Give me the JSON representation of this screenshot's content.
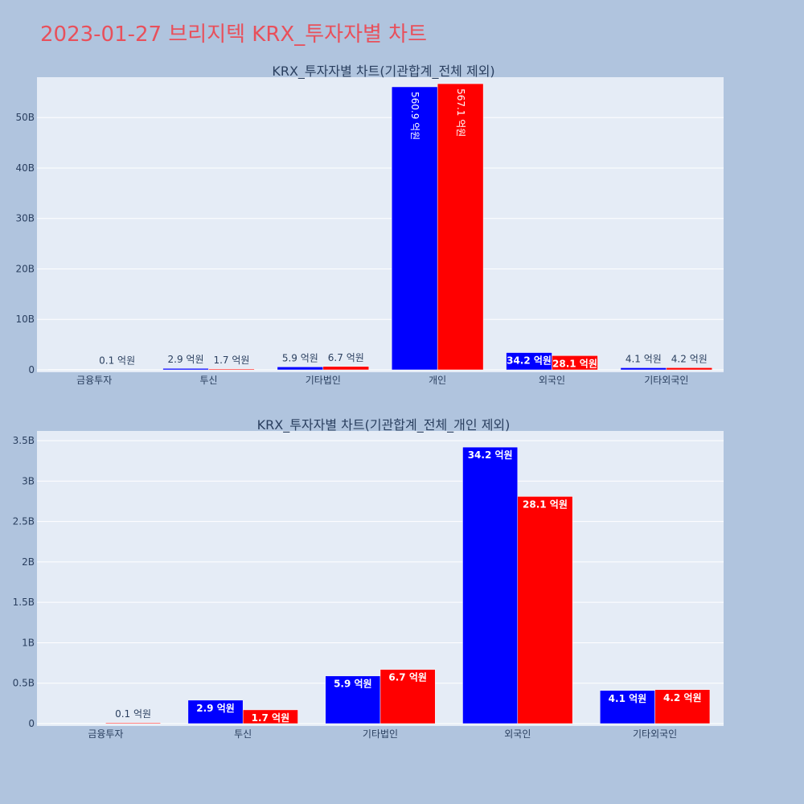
{
  "page": {
    "title": "2023-01-27 브리지텍 KRX_투자자별 차트"
  },
  "colors": {
    "buy": "#0000ff",
    "sell": "#ff0000",
    "plot_bg": "#e5ecf6",
    "grid": "#ffffff",
    "page_bg": "#b0c4de",
    "title": "#e8505b"
  },
  "chart_data": [
    {
      "type": "bar",
      "title": "KRX_투자자별 차트(기관합계_전체 제외)",
      "categories": [
        "금융투자",
        "투신",
        "기타법인",
        "개인",
        "외국인",
        "기타외국인"
      ],
      "ylim": [
        0,
        58000000000
      ],
      "yticks": [
        0,
        10000000000,
        20000000000,
        30000000000,
        40000000000,
        50000000000
      ],
      "ytick_labels": [
        "0",
        "10B",
        "20B",
        "30B",
        "40B",
        "50B"
      ],
      "series": [
        {
          "color": "#0000ff",
          "values": [
            0,
            290000000,
            590000000,
            56090000000,
            3420000000,
            410000000
          ],
          "labels": [
            "",
            "2.9 억원",
            "5.9 억원",
            "560.9 억원",
            "34.2 억원",
            "4.1 억원"
          ]
        },
        {
          "color": "#ff0000",
          "values": [
            10000000,
            170000000,
            670000000,
            56710000000,
            2810000000,
            420000000
          ],
          "labels": [
            "0.1 억원",
            "1.7 억원",
            "6.7 억원",
            "567.1 억원",
            "28.1 억원",
            "4.2 억원"
          ]
        }
      ],
      "grid": true
    },
    {
      "type": "bar",
      "title": "KRX_투자자별 차트(기관합계_전체_개인 제외)",
      "categories": [
        "금융투자",
        "투신",
        "기타법인",
        "외국인",
        "기타외국인"
      ],
      "ylim": [
        0,
        3620000000
      ],
      "yticks": [
        0,
        500000000,
        1000000000,
        1500000000,
        2000000000,
        2500000000,
        3000000000,
        3500000000
      ],
      "ytick_labels": [
        "0",
        "0.5B",
        "1B",
        "1.5B",
        "2B",
        "2.5B",
        "3B",
        "3.5B"
      ],
      "series": [
        {
          "color": "#0000ff",
          "values": [
            0,
            290000000,
            590000000,
            3420000000,
            410000000
          ],
          "labels": [
            "",
            "2.9 억원",
            "5.9 억원",
            "34.2 억원",
            "4.1 억원"
          ]
        },
        {
          "color": "#ff0000",
          "values": [
            10000000,
            170000000,
            670000000,
            2810000000,
            420000000
          ],
          "labels": [
            "0.1 억원",
            "1.7 억원",
            "6.7 억원",
            "28.1 억원",
            "4.2 억원"
          ]
        }
      ],
      "grid": true
    }
  ]
}
